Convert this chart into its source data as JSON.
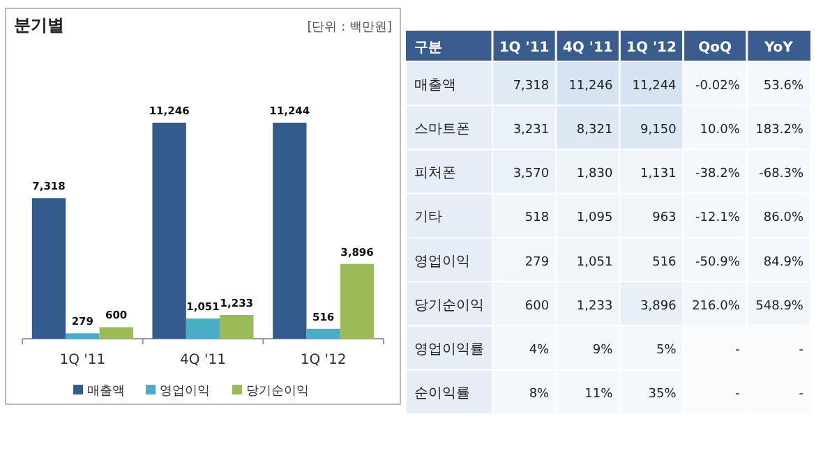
{
  "chart_data": [
    {
      "type": "bar",
      "title": "분기별",
      "subtitle": "[단위 : 백만원]",
      "categories": [
        "1Q '11",
        "4Q '11",
        "1Q '12"
      ],
      "series": [
        {
          "name": "매출액",
          "color": "#335c8d",
          "values": [
            7318,
            11246,
            11244
          ],
          "value_labels": [
            "7,318",
            "11,246",
            "11,244"
          ]
        },
        {
          "name": "영업이익",
          "color": "#4bacc6",
          "values": [
            279,
            1051,
            516
          ],
          "value_labels": [
            "279",
            "1,051",
            "516"
          ]
        },
        {
          "name": "당기순이익",
          "color": "#9bbb59",
          "values": [
            600,
            1233,
            3896
          ],
          "value_labels": [
            "600",
            "1,233",
            "3,896"
          ]
        }
      ],
      "legend": "bottom"
    },
    {
      "type": "heatmap",
      "ylabel": "구분",
      "categories": [
        "1Q '11",
        "4Q '11",
        "1Q '12",
        "QoQ",
        "YoY"
      ],
      "y_categories": [
        "매출액",
        "스마트폰",
        "피처폰",
        "기타",
        "영업이익",
        "당기순이익",
        "영업이익률",
        "순이익률"
      ],
      "cells": [
        [
          7318,
          11246,
          11244,
          -0.02,
          53.6
        ],
        [
          3231,
          8321,
          9150,
          10.0,
          183.2
        ],
        [
          3570,
          1830,
          1131,
          -38.2,
          -68.3
        ],
        [
          518,
          1095,
          963,
          -12.1,
          86.0
        ],
        [
          279,
          1051,
          516,
          -50.9,
          84.9
        ],
        [
          600,
          1233,
          3896,
          216.0,
          548.9
        ],
        [
          4,
          9,
          5,
          null,
          null
        ],
        [
          8,
          11,
          35,
          null,
          null
        ]
      ],
      "cell_labels": [
        [
          "7,318",
          "11,246",
          "11,244",
          "-0.02%",
          "53.6%"
        ],
        [
          "3,231",
          "8,321",
          "9,150",
          "10.0%",
          "183.2%"
        ],
        [
          "3,570",
          "1,830",
          "1,131",
          "-38.2%",
          "-68.3%"
        ],
        [
          "518",
          "1,095",
          "963",
          "-12.1%",
          "86.0%"
        ],
        [
          "279",
          "1,051",
          "516",
          "-50.9%",
          "84.9%"
        ],
        [
          "600",
          "1,233",
          "3,896",
          "216.0%",
          "548.9%"
        ],
        [
          "4%",
          "9%",
          "5%",
          "-",
          "-"
        ],
        [
          "8%",
          "11%",
          "35%",
          "-",
          "-"
        ]
      ]
    }
  ]
}
